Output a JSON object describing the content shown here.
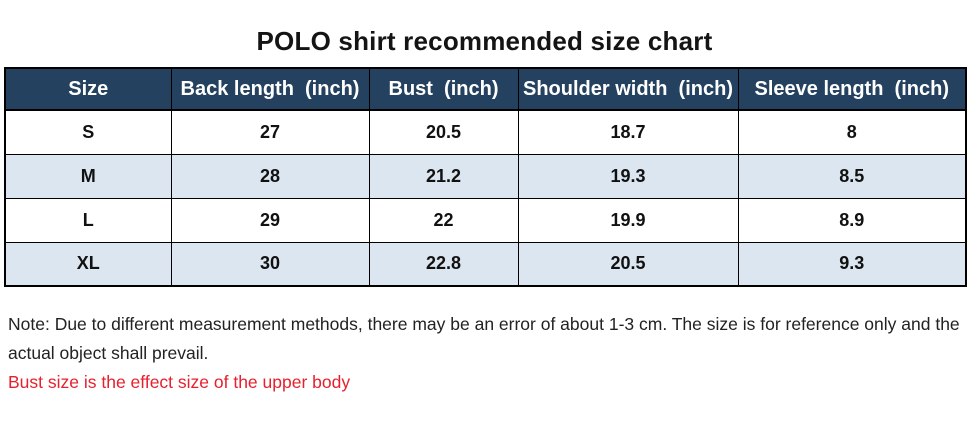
{
  "title": "POLO shirt recommended size chart",
  "table": {
    "headers": [
      "Size",
      "Back length  (inch)",
      "Bust  (inch)",
      "Shoulder width  (inch)",
      "Sleeve length  (inch)"
    ],
    "rows": [
      [
        "S",
        "27",
        "20.5",
        "18.7",
        "8"
      ],
      [
        "M",
        "28",
        "21.2",
        "19.3",
        "8.5"
      ],
      [
        "L",
        "29",
        "22",
        "19.9",
        "8.9"
      ],
      [
        "XL",
        "30",
        "22.8",
        "20.5",
        "9.3"
      ]
    ]
  },
  "notes": {
    "measurement": "Note: Due to different measurement methods, there may be an error of about 1-3 cm. The size is for reference only and the actual object shall prevail.",
    "bust": "Bust size is the effect size of the upper body"
  },
  "colors": {
    "header-bg": "#24415f",
    "header-text": "#ffffff",
    "stripe-bg": "#dce6f1",
    "border": "#000000",
    "note-red": "#e6202e",
    "text": "#141414"
  }
}
